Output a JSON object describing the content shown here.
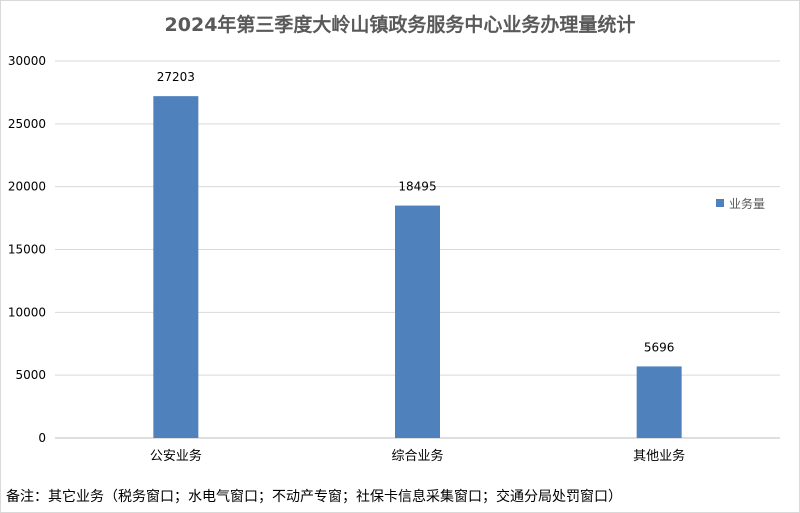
{
  "chart_data": {
    "type": "bar",
    "title": "2024年第三季度大岭山镇政务服务中心业务办理量统计",
    "categories": [
      "公安业务",
      "综合业务",
      "其他业务"
    ],
    "series": [
      {
        "name": "业务量",
        "values": [
          27203,
          18495,
          5696
        ],
        "color": "#4f81bd"
      }
    ],
    "data_labels": [
      "27203",
      "18495",
      "5696"
    ],
    "ylim": [
      0,
      30000
    ],
    "yticks": [
      0,
      5000,
      10000,
      15000,
      20000,
      25000,
      30000
    ],
    "ytick_labels": [
      "0",
      "5000",
      "10000",
      "15000",
      "20000",
      "25000",
      "30000"
    ],
    "xlabel": "",
    "ylabel": "",
    "grid": true,
    "legend_position": "right"
  },
  "footnote": "备注：其它业务（税务窗口；水电气窗口；不动产专窗；社保卡信息采集窗口；交通分局处罚窗口）"
}
